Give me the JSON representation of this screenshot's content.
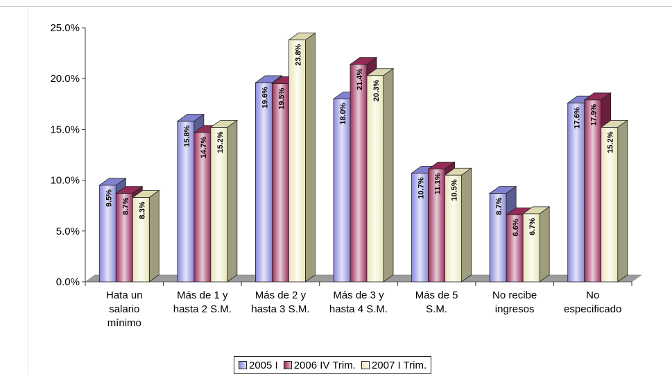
{
  "chart_data": {
    "type": "bar",
    "categories": [
      [
        "Hata un",
        "salario",
        "mínimo"
      ],
      [
        "Más de 1 y",
        "hasta 2 S.M."
      ],
      [
        "Más de 2 y",
        "hasta 3 S.M."
      ],
      [
        "Más de 3 y",
        "hasta 4 S.M."
      ],
      [
        "Más de 5",
        "S.M."
      ],
      [
        "No recibe",
        "ingresos"
      ],
      [
        "No",
        "especificado"
      ]
    ],
    "series": [
      {
        "name": "2005 I",
        "values": [
          9.5,
          15.8,
          19.6,
          18.0,
          10.7,
          8.7,
          17.6
        ],
        "color": "#8f8fe6"
      },
      {
        "name": "2006 IV Trim.",
        "values": [
          8.7,
          14.7,
          19.5,
          21.4,
          11.1,
          6.6,
          17.9
        ],
        "color": "#a33060"
      },
      {
        "name": "2007 I Trim.",
        "values": [
          8.3,
          15.2,
          23.8,
          20.3,
          10.5,
          6.7,
          15.2
        ],
        "color": "#f4f1c4"
      }
    ],
    "ylim": [
      0,
      25
    ],
    "yticks": [
      "0.0%",
      "5.0%",
      "10.0%",
      "15.0%",
      "20.0%",
      "25.0%"
    ],
    "value_suffix": "%",
    "grid": false,
    "legend_position": "bottom"
  }
}
